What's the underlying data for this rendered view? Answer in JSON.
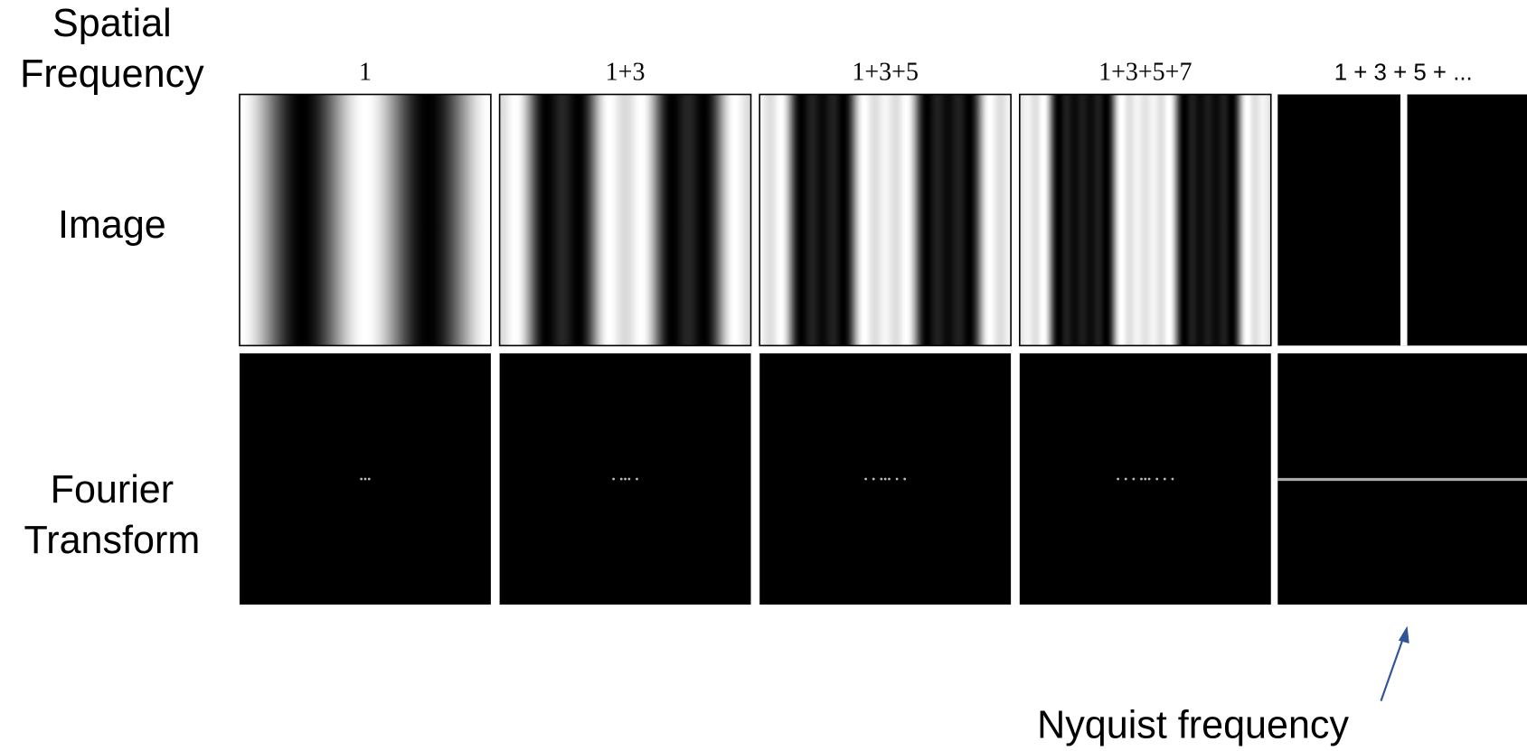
{
  "row_labels": {
    "spatial_frequency": "Spatial Frequency",
    "image": "Image",
    "fourier": "Fourier Transform"
  },
  "columns": [
    "1",
    "1+3",
    "1+3+5",
    "1+3+5+7",
    "1 + 3 + 5 + ..."
  ],
  "annotation": "Nyquist frequency"
}
